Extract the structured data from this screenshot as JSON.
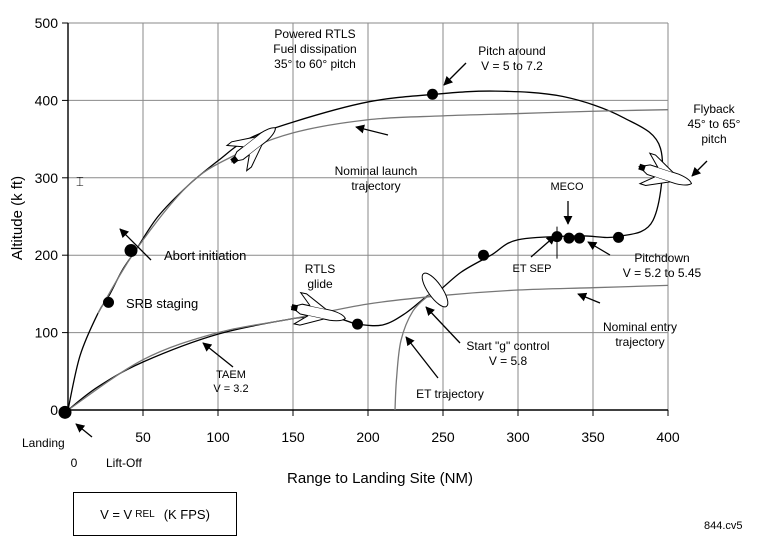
{
  "chart_data": {
    "type": "line",
    "xlabel": "Range to Landing Site (NM)",
    "ylabel": "Altitude (k ft)",
    "xlim": [
      0,
      400
    ],
    "ylim": [
      0,
      500
    ],
    "xticks": [
      "0",
      "50",
      "100",
      "150",
      "200",
      "250",
      "300",
      "350",
      "400"
    ],
    "yticks": [
      "0",
      "100",
      "200",
      "300",
      "400",
      "500"
    ],
    "grid": true,
    "legend_text": {
      "v_eq": "V  =  V",
      "v_sub": "REL",
      "units": "(K FPS)"
    },
    "figure_code": "844.cv5",
    "series": [
      {
        "values": [
          [
            0,
            0
          ],
          [
            8,
            70
          ],
          [
            20,
            125
          ],
          [
            28,
            150
          ],
          [
            36,
            180
          ],
          [
            45,
            206
          ],
          [
            60,
            250
          ],
          [
            80,
            290
          ],
          [
            100,
            322
          ],
          [
            120,
            350
          ],
          [
            150,
            372
          ],
          [
            200,
            398
          ],
          [
            245,
            408
          ],
          [
            285,
            412
          ],
          [
            330,
            405
          ],
          [
            370,
            378
          ],
          [
            395,
            338
          ],
          [
            390,
            245
          ],
          [
            366,
            224
          ],
          [
            340,
            225
          ],
          [
            300,
            220
          ],
          [
            282,
            200
          ],
          [
            262,
            178
          ],
          [
            245,
            150
          ],
          [
            240,
            148
          ],
          [
            225,
            125
          ],
          [
            210,
            110
          ],
          [
            193,
            111
          ],
          [
            180,
            118
          ],
          [
            160,
            118
          ],
          [
            150,
            118
          ],
          [
            100,
            98
          ],
          [
            50,
            62
          ],
          [
            20,
            30
          ],
          [
            0,
            0
          ]
        ]
      },
      {
        "values": [
          [
            20,
            125
          ],
          [
            45,
            206
          ],
          [
            80,
            290
          ],
          [
            110,
            328
          ],
          [
            150,
            358
          ],
          [
            200,
            375
          ],
          [
            250,
            380
          ],
          [
            300,
            383
          ],
          [
            350,
            386
          ],
          [
            400,
            388
          ]
        ]
      },
      {
        "values": [
          [
            0,
            0
          ],
          [
            50,
            65
          ],
          [
            100,
            100
          ],
          [
            150,
            118
          ],
          [
            200,
            137
          ],
          [
            250,
            148
          ],
          [
            300,
            155
          ],
          [
            350,
            158
          ],
          [
            400,
            161
          ]
        ]
      },
      {
        "values": [
          [
            241,
            149
          ],
          [
            230,
            128
          ],
          [
            222,
            90
          ],
          [
            219,
            40
          ],
          [
            218,
            0
          ]
        ]
      }
    ],
    "points": [
      {
        "x": -2,
        "y": -3
      },
      {
        "x": 27,
        "y": 139
      },
      {
        "x": 42,
        "y": 206
      },
      {
        "x": 193,
        "y": 111
      },
      {
        "x": 243,
        "y": 408
      },
      {
        "x": 277,
        "y": 200
      },
      {
        "x": 326,
        "y": 224
      },
      {
        "x": 334,
        "y": 222
      },
      {
        "x": 341,
        "y": 222
      },
      {
        "x": 367,
        "y": 223
      }
    ],
    "annotations": [
      {
        "lines": [
          "Landing"
        ]
      },
      {
        "lines": [
          "0"
        ]
      },
      {
        "lines": [
          "Lift-Off"
        ]
      },
      {
        "lines": [
          "SRB staging"
        ]
      },
      {
        "lines": [
          "Abort initiation"
        ]
      },
      {
        "lines": [
          "Powered RTLS",
          "Fuel dissipation",
          "35° to 60° pitch"
        ]
      },
      {
        "lines": [
          "Pitch around",
          "V = 5 to 7.2"
        ]
      },
      {
        "lines": [
          "Nominal launch",
          "trajectory"
        ]
      },
      {
        "lines": [
          "Flyback",
          "45° to 65°",
          "pitch"
        ]
      },
      {
        "lines": [
          "MECO"
        ]
      },
      {
        "lines": [
          "ET SEP"
        ]
      },
      {
        "lines": [
          "Pitchdown",
          "V = 5.2 to 5.45"
        ]
      },
      {
        "lines": [
          "RTLS",
          "glide"
        ]
      },
      {
        "lines": [
          "Nominal entry",
          "trajectory"
        ]
      },
      {
        "lines": [
          "Start \"g\" control",
          "V = 5.8"
        ]
      },
      {
        "lines": [
          "ET trajectory"
        ]
      },
      {
        "lines": [
          "TAEM",
          "V = 3.2"
        ]
      }
    ]
  }
}
